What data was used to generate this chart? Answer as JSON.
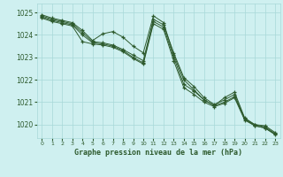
{
  "title": "Graphe pression niveau de la mer (hPa)",
  "bg_color": "#cff0f0",
  "grid_color": "#a8d8d8",
  "line_color": "#2d5a2d",
  "ylim": [
    1019.4,
    1025.4
  ],
  "xlim": [
    -0.5,
    23.5
  ],
  "yticks": [
    1020,
    1021,
    1022,
    1023,
    1024,
    1025
  ],
  "xticks": [
    0,
    1,
    2,
    3,
    4,
    5,
    6,
    7,
    8,
    9,
    10,
    11,
    12,
    13,
    14,
    15,
    16,
    17,
    18,
    19,
    20,
    21,
    22,
    23
  ],
  "series": [
    [
      1024.9,
      1024.75,
      1024.65,
      1024.55,
      1024.2,
      1023.75,
      1024.05,
      1024.15,
      1023.9,
      1023.5,
      1023.2,
      1024.85,
      1024.55,
      1023.1,
      1022.0,
      1021.55,
      1021.1,
      1020.85,
      1021.2,
      1021.45,
      1020.3,
      1020.0,
      1019.95,
      1019.65
    ],
    [
      1024.85,
      1024.7,
      1024.6,
      1024.5,
      1024.1,
      1023.7,
      1023.65,
      1023.55,
      1023.35,
      1023.1,
      1022.85,
      1024.7,
      1024.45,
      1023.2,
      1022.1,
      1021.7,
      1021.2,
      1020.9,
      1021.1,
      1021.35,
      1020.25,
      1020.0,
      1019.9,
      1019.6
    ],
    [
      1024.8,
      1024.65,
      1024.55,
      1024.45,
      1024.0,
      1023.65,
      1023.6,
      1023.5,
      1023.3,
      1023.0,
      1022.75,
      1024.6,
      1024.35,
      1023.0,
      1021.8,
      1021.5,
      1021.1,
      1020.85,
      1021.0,
      1021.25,
      1020.25,
      1019.95,
      1019.85,
      1019.58
    ],
    [
      1024.75,
      1024.6,
      1024.5,
      1024.4,
      1023.7,
      1023.6,
      1023.55,
      1023.45,
      1023.25,
      1022.95,
      1022.7,
      1024.5,
      1024.25,
      1022.85,
      1021.65,
      1021.35,
      1021.0,
      1020.8,
      1020.95,
      1021.2,
      1020.2,
      1019.95,
      1019.85,
      1019.55
    ]
  ]
}
